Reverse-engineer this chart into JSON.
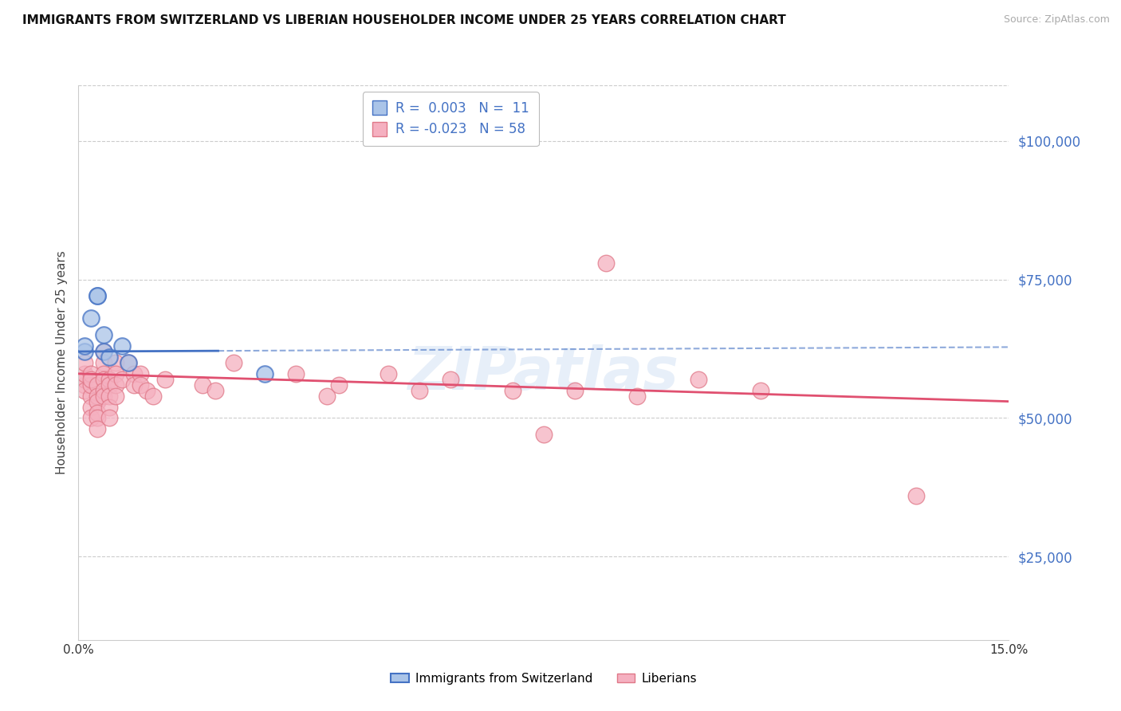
{
  "title": "IMMIGRANTS FROM SWITZERLAND VS LIBERIAN HOUSEHOLDER INCOME UNDER 25 YEARS CORRELATION CHART",
  "source": "Source: ZipAtlas.com",
  "ylabel": "Householder Income Under 25 years",
  "xlim": [
    0.0,
    0.15
  ],
  "ylim": [
    10000,
    110000
  ],
  "yticks": [
    25000,
    50000,
    75000,
    100000
  ],
  "ytick_labels": [
    "$25,000",
    "$50,000",
    "$75,000",
    "$100,000"
  ],
  "xtick_labels": [
    "0.0%",
    "15.0%"
  ],
  "color_swiss": "#aac4e8",
  "color_liberian": "#f5b0c0",
  "line_color_swiss": "#4472c4",
  "line_color_liberian": "#e05070",
  "edge_color_swiss": "#4472c4",
  "edge_color_liberian": "#e07888",
  "background_color": "#ffffff",
  "grid_color": "#cccccc",
  "watermark": "ZIPatlas",
  "swiss_x": [
    0.001,
    0.001,
    0.002,
    0.003,
    0.003,
    0.004,
    0.004,
    0.005,
    0.007,
    0.008,
    0.03
  ],
  "swiss_y": [
    62000,
    63000,
    68000,
    72000,
    72000,
    65000,
    62000,
    61000,
    63000,
    60000,
    58000
  ],
  "liberian_x": [
    0.001,
    0.001,
    0.001,
    0.001,
    0.001,
    0.002,
    0.002,
    0.002,
    0.002,
    0.002,
    0.002,
    0.003,
    0.003,
    0.003,
    0.003,
    0.003,
    0.003,
    0.004,
    0.004,
    0.004,
    0.004,
    0.004,
    0.004,
    0.005,
    0.005,
    0.005,
    0.005,
    0.005,
    0.006,
    0.006,
    0.006,
    0.006,
    0.007,
    0.008,
    0.009,
    0.009,
    0.01,
    0.01,
    0.011,
    0.012,
    0.014,
    0.02,
    0.022,
    0.025,
    0.035,
    0.04,
    0.042,
    0.05,
    0.055,
    0.06,
    0.07,
    0.075,
    0.08,
    0.085,
    0.09,
    0.1,
    0.11,
    0.135
  ],
  "liberian_y": [
    56000,
    57000,
    58000,
    60000,
    55000,
    54000,
    56000,
    58000,
    52000,
    50000,
    57000,
    56000,
    54000,
    53000,
    51000,
    50000,
    48000,
    62000,
    60000,
    58000,
    57000,
    55000,
    54000,
    57000,
    56000,
    54000,
    52000,
    50000,
    60000,
    58000,
    56000,
    54000,
    57000,
    60000,
    58000,
    56000,
    58000,
    56000,
    55000,
    54000,
    57000,
    56000,
    55000,
    60000,
    58000,
    54000,
    56000,
    58000,
    55000,
    57000,
    55000,
    47000,
    55000,
    78000,
    54000,
    57000,
    55000,
    36000
  ],
  "swiss_trend_x": [
    0.0,
    0.15
  ],
  "swiss_trend_y": [
    62000,
    62800
  ],
  "liberian_trend_x": [
    0.0,
    0.15
  ],
  "liberian_trend_y": [
    58000,
    53000
  ],
  "legend1_label": "R =  0.003   N =  11",
  "legend2_label": "R = -0.023   N = 58",
  "bot_legend1": "Immigrants from Switzerland",
  "bot_legend2": "Liberians"
}
